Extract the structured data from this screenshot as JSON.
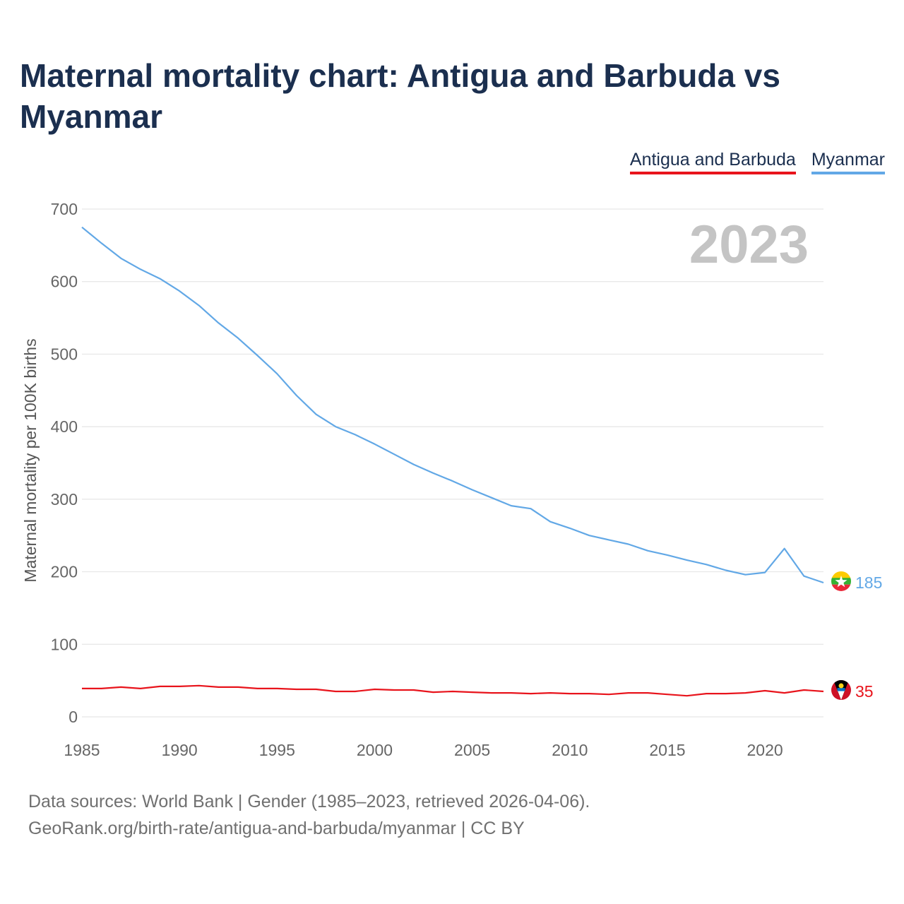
{
  "title": "Maternal mortality chart: Antigua and Barbuda vs Myanmar",
  "legend": [
    {
      "label": "Antigua and Barbuda",
      "color": "#e8141c"
    },
    {
      "label": "Myanmar",
      "color": "#62a8e6"
    }
  ],
  "footer": {
    "line1": "Data sources: World Bank | Gender (1985–2023, retrieved 2026-04-06).",
    "line2": "GeoRank.org/birth-rate/antigua-and-barbuda/myanmar | CC BY"
  },
  "chart_data": {
    "type": "line",
    "year_label": "2023",
    "ylabel": "Maternal mortality per 100K births",
    "xlabel": "",
    "xlim": [
      1985,
      2023
    ],
    "ylim": [
      0,
      700
    ],
    "yticks": [
      0,
      100,
      200,
      300,
      400,
      500,
      600,
      700
    ],
    "xticks": [
      1985,
      1990,
      1995,
      2000,
      2005,
      2010,
      2015,
      2020
    ],
    "grid": true,
    "x": [
      1985,
      1986,
      1987,
      1988,
      1989,
      1990,
      1991,
      1992,
      1993,
      1994,
      1995,
      1996,
      1997,
      1998,
      1999,
      2000,
      2001,
      2002,
      2003,
      2004,
      2005,
      2006,
      2007,
      2008,
      2009,
      2010,
      2011,
      2012,
      2013,
      2014,
      2015,
      2016,
      2017,
      2018,
      2019,
      2020,
      2021,
      2022,
      2023
    ],
    "series": [
      {
        "name": "Myanmar",
        "color": "#62a8e6",
        "end_label": "185",
        "values": [
          675,
          653,
          632,
          617,
          604,
          587,
          567,
          543,
          522,
          498,
          473,
          443,
          417,
          400,
          389,
          376,
          362,
          348,
          336,
          325,
          313,
          302,
          291,
          287,
          269,
          260,
          250,
          244,
          238,
          229,
          223,
          216,
          210,
          202,
          196,
          199,
          232,
          194,
          185
        ]
      },
      {
        "name": "Antigua and Barbuda",
        "color": "#e8141c",
        "end_label": "35",
        "values": [
          39,
          39,
          41,
          39,
          42,
          42,
          43,
          41,
          41,
          39,
          39,
          38,
          38,
          35,
          35,
          38,
          37,
          37,
          34,
          35,
          34,
          33,
          33,
          32,
          33,
          32,
          32,
          31,
          33,
          33,
          31,
          29,
          32,
          32,
          33,
          36,
          33,
          37,
          35
        ]
      }
    ]
  }
}
